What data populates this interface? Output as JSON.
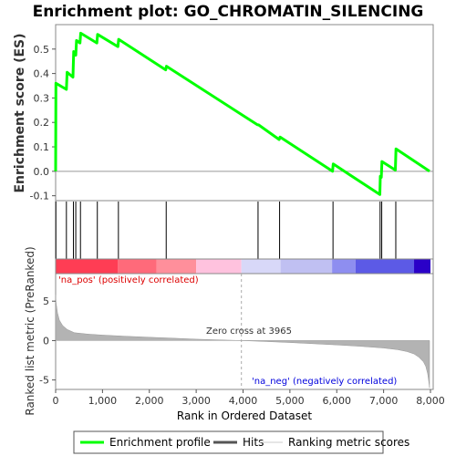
{
  "chart_data": {
    "type": "line",
    "title": "Enrichment plot: GO_CHROMATIN_SILENCING",
    "es_panel": {
      "ylabel": "Enrichment score (ES)",
      "ylim": [
        -0.12,
        0.6
      ],
      "yticks": [
        "-0.1",
        "0.0",
        "0.1",
        "0.2",
        "0.3",
        "0.4",
        "0.5"
      ],
      "yticks_values": [
        -0.1,
        0.0,
        0.1,
        0.2,
        0.3,
        0.4,
        0.5
      ],
      "grid": false,
      "series": [
        {
          "name": "Enrichment profile",
          "color": "#00ff00",
          "x": [
            0,
            5,
            230,
            245,
            370,
            385,
            430,
            445,
            520,
            535,
            880,
            895,
            1330,
            1345,
            2350,
            2365,
            4310,
            4330,
            4770,
            4790,
            5910,
            5925,
            6920,
            6930,
            6950,
            6965,
            7250,
            7265,
            7980
          ],
          "y": [
            0.0,
            0.36,
            0.335,
            0.405,
            0.385,
            0.49,
            0.475,
            0.535,
            0.525,
            0.565,
            0.525,
            0.56,
            0.51,
            0.54,
            0.415,
            0.43,
            0.19,
            0.19,
            0.13,
            0.14,
            0.0,
            0.03,
            -0.095,
            -0.02,
            -0.025,
            0.04,
            0.005,
            0.092,
            0.0
          ]
        }
      ]
    },
    "hits": [
      5,
      230,
      380,
      430,
      530,
      890,
      1340,
      2360,
      4320,
      4780,
      5920,
      6925,
      6960,
      7260
    ],
    "hits_color": "#000000",
    "ranking_bar": {
      "segments": [
        {
          "start": 0,
          "end": 1330,
          "color": "#ff3d54"
        },
        {
          "start": 1330,
          "end": 2150,
          "color": "#ff6a7a"
        },
        {
          "start": 2150,
          "end": 3000,
          "color": "#ff8f9b"
        },
        {
          "start": 3000,
          "end": 3965,
          "color": "#ffc2de"
        },
        {
          "start": 3965,
          "end": 4800,
          "color": "#d8d8f8"
        },
        {
          "start": 4800,
          "end": 5900,
          "color": "#c0c0f2"
        },
        {
          "start": 5900,
          "end": 6400,
          "color": "#8e8ef0"
        },
        {
          "start": 6400,
          "end": 7650,
          "color": "#5c5ae6"
        },
        {
          "start": 7650,
          "end": 8000,
          "color": "#2a00c8"
        }
      ]
    },
    "metric_panel": {
      "ylabel": "Ranked list metric (PreRanked)",
      "ylim": [
        -6.2,
        8.5
      ],
      "yticks": [
        "-5",
        "0",
        "5"
      ],
      "yticks_values": [
        -5,
        0,
        5
      ],
      "color": "#b3b3b3",
      "x": [
        0,
        10,
        40,
        80,
        150,
        250,
        400,
        700,
        1000,
        1500,
        2000,
        2500,
        3000,
        3500,
        3965,
        4500,
        5000,
        5500,
        6000,
        6500,
        7000,
        7300,
        7500,
        7650,
        7750,
        7850,
        7900,
        7940,
        7960,
        7980
      ],
      "values": [
        5.8,
        4.8,
        3.5,
        2.6,
        1.9,
        1.4,
        1.0,
        0.82,
        0.7,
        0.55,
        0.42,
        0.3,
        0.18,
        0.08,
        0.0,
        -0.12,
        -0.25,
        -0.4,
        -0.55,
        -0.72,
        -0.95,
        -1.15,
        -1.4,
        -1.7,
        -2.1,
        -2.7,
        -3.3,
        -4.2,
        -5.0,
        -6.0
      ]
    },
    "xlabel": "Rank in Ordered Dataset",
    "xlim": [
      0,
      8000
    ],
    "xticks": [
      "0",
      "1,000",
      "2,000",
      "3,000",
      "4,000",
      "5,000",
      "6,000",
      "7,000",
      "8,000"
    ],
    "xticks_values": [
      0,
      1000,
      2000,
      3000,
      4000,
      5000,
      6000,
      7000,
      8000
    ],
    "annotations": {
      "pos_label": "'na_pos' (positively correlated)",
      "pos_color": "#dd0000",
      "neg_label": "'na_neg' (negatively correlated)",
      "neg_color": "#0000dd",
      "zero_cross": "Zero cross at 3965",
      "zero_cross_value": 3965
    },
    "legend": {
      "placement": "bottom",
      "items": [
        {
          "label": "Enrichment profile",
          "color": "#00ff00"
        },
        {
          "label": "Hits",
          "color": "#555555"
        },
        {
          "label": "Ranking metric scores",
          "color": "#cccccc"
        }
      ]
    }
  }
}
